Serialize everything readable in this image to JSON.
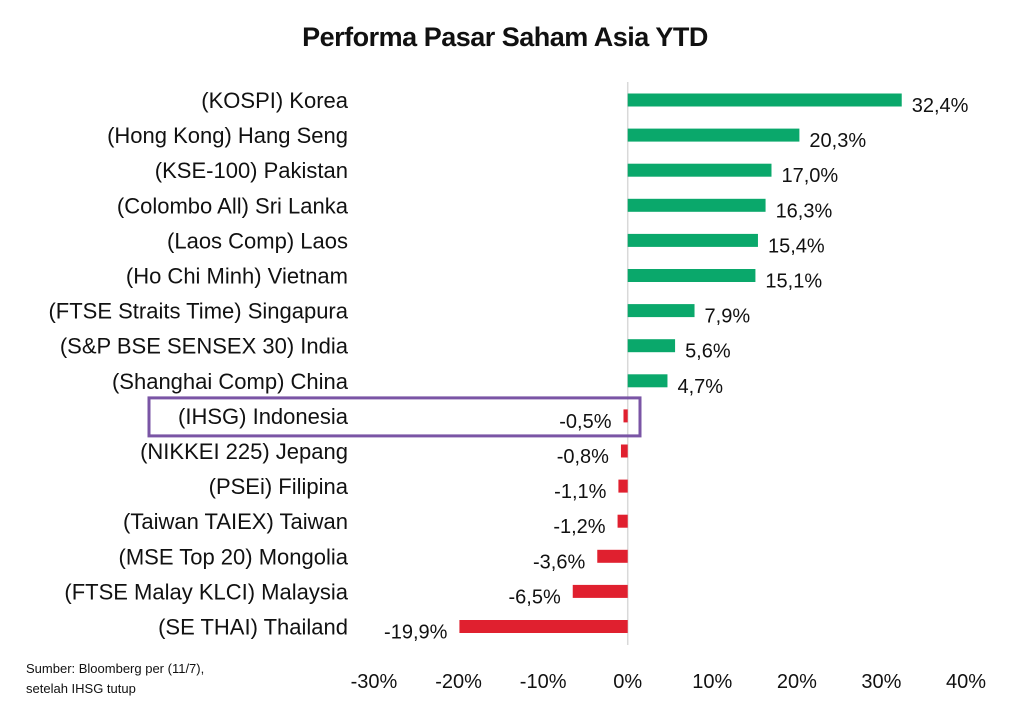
{
  "chart_data": {
    "type": "bar",
    "orientation": "horizontal",
    "title": "Performa Pasar Saham Asia YTD",
    "categories": [
      "(KOSPI) Korea",
      "(Hong Kong) Hang Seng",
      "(KSE-100) Pakistan",
      "(Colombo All) Sri Lanka",
      "(Laos Comp) Laos",
      "(Ho Chi Minh) Vietnam",
      "(FTSE Straits Time) Singapura",
      "(S&P BSE SENSEX 30) India",
      "(Shanghai Comp) China",
      "(IHSG) Indonesia",
      "(NIKKEI 225) Jepang",
      "(PSEi) Filipina",
      "(Taiwan TAIEX) Taiwan",
      "(MSE Top 20) Mongolia",
      "(FTSE Malay KLCI) Malaysia",
      "(SE THAI) Thailand"
    ],
    "values": [
      32.4,
      20.3,
      17.0,
      16.3,
      15.4,
      15.1,
      7.9,
      5.6,
      4.7,
      -0.5,
      -0.8,
      -1.1,
      -1.2,
      -3.6,
      -6.5,
      -19.9
    ],
    "value_labels": [
      "32,4%",
      "20,3%",
      "17,0%",
      "16,3%",
      "15,4%",
      "15,1%",
      "7,9%",
      "5,6%",
      "4,7%",
      "-0,5%",
      "-0,8%",
      "-1,1%",
      "-1,2%",
      "-3,6%",
      "-6,5%",
      "-19,9%"
    ],
    "xlim": [
      -30,
      40
    ],
    "xticks": [
      -30,
      -20,
      -10,
      0,
      10,
      20,
      30,
      40
    ],
    "xtick_labels": [
      "-30%",
      "-20%",
      "-10%",
      "0%",
      "10%",
      "20%",
      "30%",
      "40%"
    ],
    "highlighted_category": "(IHSG) Indonesia",
    "grid": false,
    "colors": {
      "positive": "#0aa86b",
      "negative": "#e0202f",
      "highlight_box": "#7a55a5",
      "zero_line": "#d9d9d9"
    }
  },
  "source_note": {
    "line1": "Sumber: Bloomberg per (11/7),",
    "line2": "setelah IHSG tutup"
  }
}
